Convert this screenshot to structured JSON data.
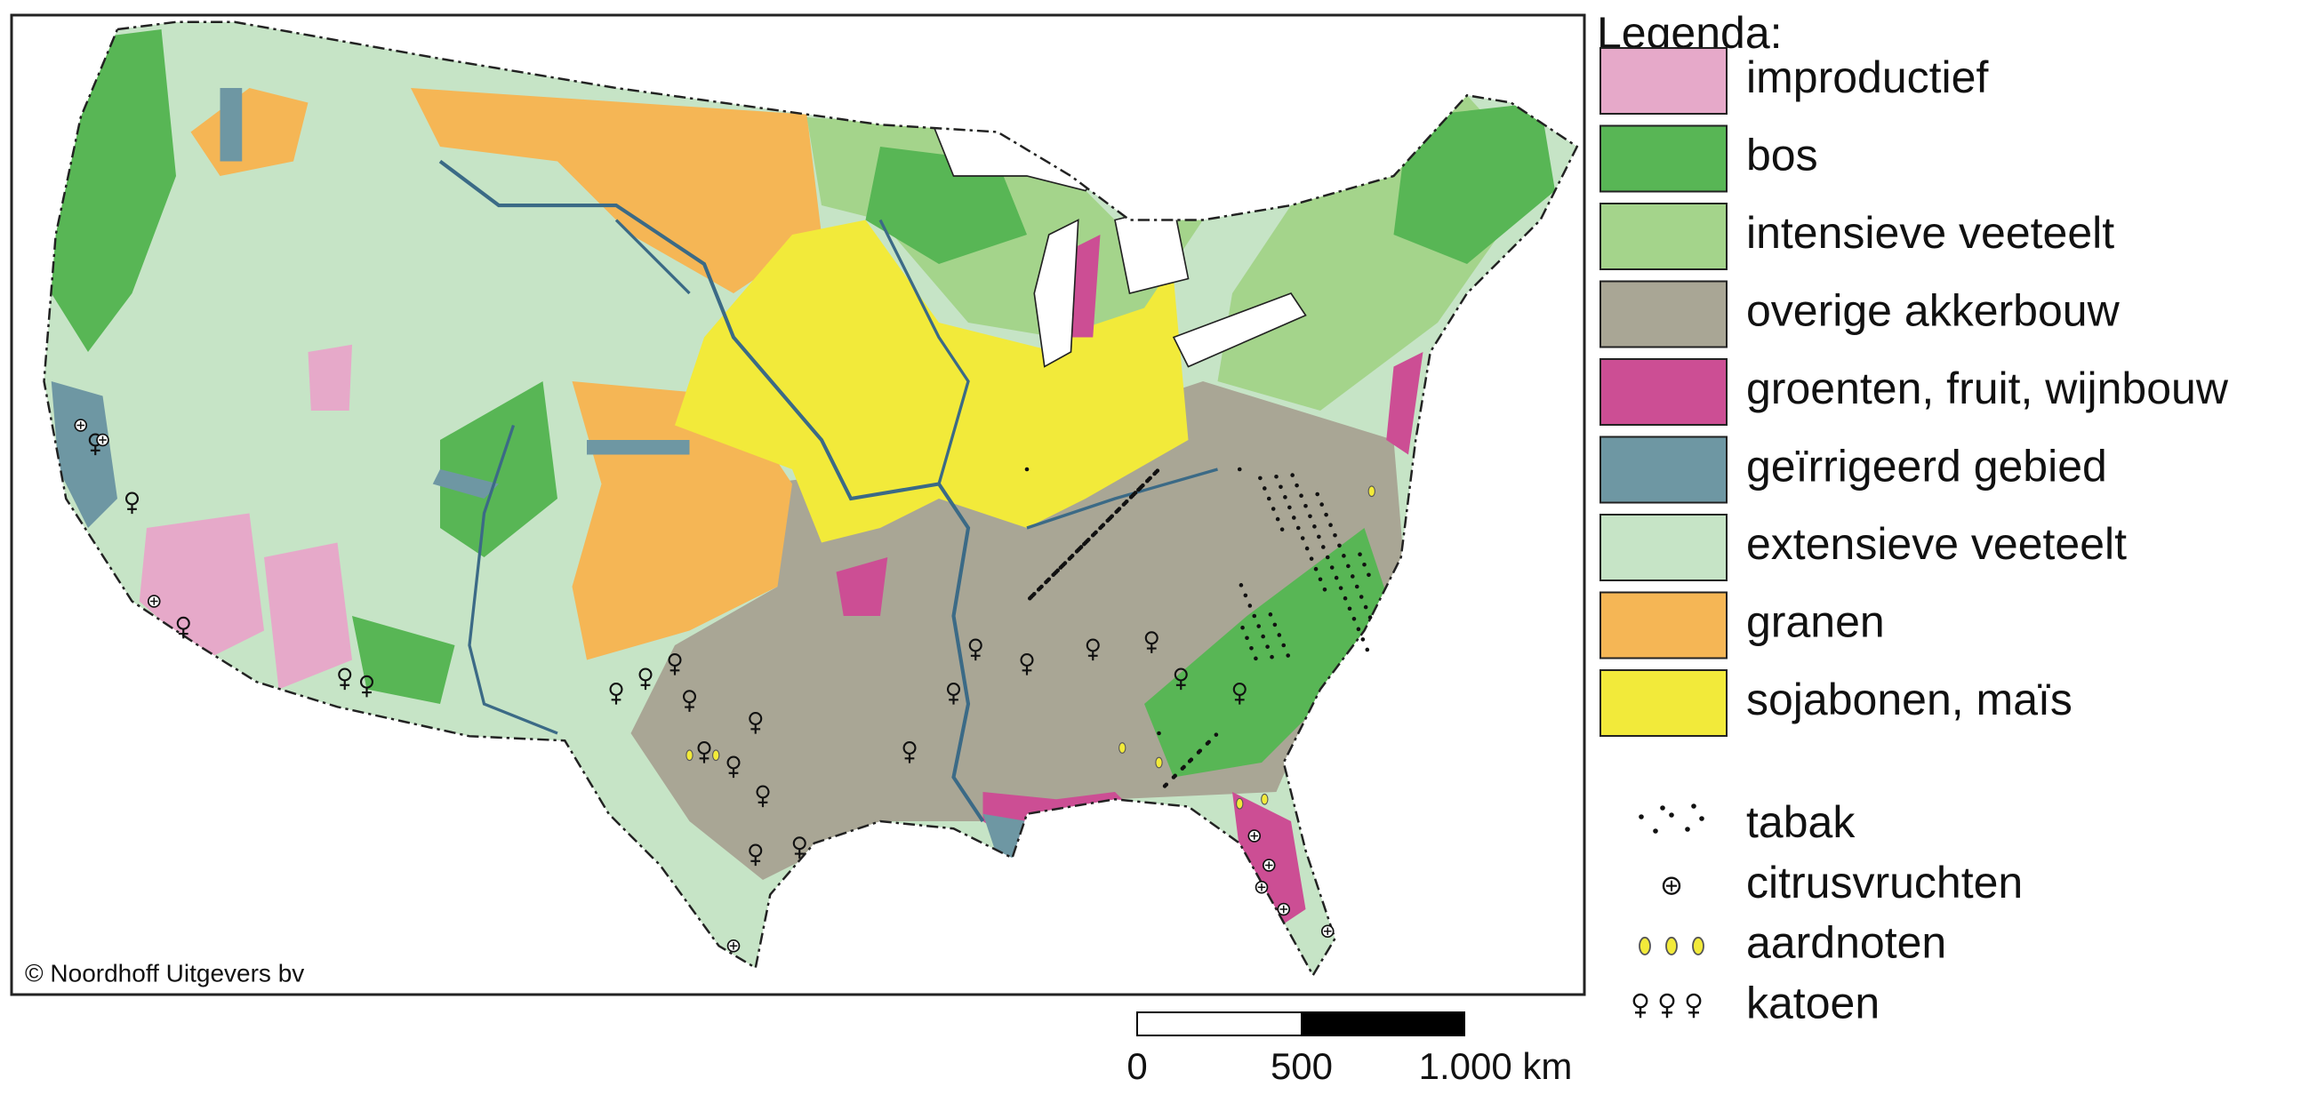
{
  "legend": {
    "title": "Legenda:",
    "areas": [
      {
        "label": "improductief",
        "color": "#e6a9c9"
      },
      {
        "label": "bos",
        "color": "#58b655"
      },
      {
        "label": "intensieve veeteelt",
        "color": "#a4d48b"
      },
      {
        "label": "overige akkerbouw",
        "color": "#a9a695"
      },
      {
        "label": "groenten, fruit, wijnbouw",
        "color": "#cc4e94"
      },
      {
        "label": "geïrrigeerd gebied",
        "color": "#6e97a3"
      },
      {
        "label": "extensieve veeteelt",
        "color": "#c6e4c6"
      },
      {
        "label": "granen",
        "color": "#f5b655"
      },
      {
        "label": "sojabonen, maïs",
        "color": "#f2ea3a"
      }
    ],
    "symbols": [
      {
        "label": "tabak"
      },
      {
        "label": "citrusvruchten"
      },
      {
        "label": "aardnoten"
      },
      {
        "label": "katoen"
      }
    ]
  },
  "scale_bar": {
    "labels": [
      "0",
      "500",
      "1.000 km"
    ]
  },
  "copyright": "© Noordhoff Uitgevers bv"
}
